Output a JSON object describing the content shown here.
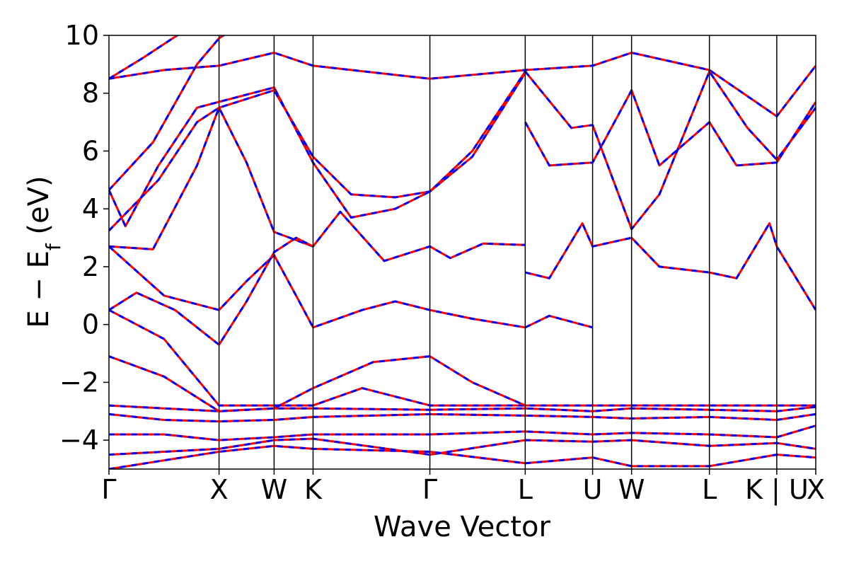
{
  "chart_data": {
    "type": "line",
    "xlabel": "Wave Vector",
    "ylabel": "E − E",
    "ylabel_sub": "f",
    "ylabel_units": " (eV)",
    "ylim": [
      -5,
      10
    ],
    "yticks": [
      "10",
      "8",
      "6",
      "4",
      "2",
      "0",
      "−2",
      "−4"
    ],
    "ytick_values": [
      10,
      8,
      6,
      4,
      2,
      0,
      -2,
      -4
    ],
    "high_symmetry_points": [
      {
        "label": "Γ",
        "x": 0.0
      },
      {
        "label": "X",
        "x": 1.0
      },
      {
        "label": "W",
        "x": 1.5
      },
      {
        "label": "K",
        "x": 1.854
      },
      {
        "label": "Γ",
        "x": 2.915
      },
      {
        "label": "L",
        "x": 3.781
      },
      {
        "label": "U",
        "x": 4.393
      },
      {
        "label": "W",
        "x": 4.747
      },
      {
        "label": "L",
        "x": 5.454
      },
      {
        "label": "K | U",
        "x": 6.066
      },
      {
        "label": "X",
        "x": 6.42
      }
    ],
    "grid": false,
    "legend": "none",
    "series_style": [
      {
        "color": "#ff0000",
        "dash": "solid",
        "width": 3
      },
      {
        "color": "#0000ff",
        "dash": "dashed",
        "width": 3
      }
    ],
    "bands": [
      [
        [
          0,
          8.5
        ],
        [
          0.5,
          8.8
        ],
        [
          1.0,
          8.95
        ],
        [
          1.5,
          9.4
        ],
        [
          1.854,
          8.95
        ],
        [
          2.915,
          8.5
        ],
        [
          3.781,
          8.8
        ],
        [
          4.393,
          8.95
        ],
        [
          4.747,
          9.4
        ],
        [
          5.454,
          8.8
        ],
        [
          6.066,
          7.2
        ],
        [
          6.42,
          8.95
        ]
      ],
      [
        [
          0,
          8.5
        ],
        [
          0.3,
          9.2
        ],
        [
          0.7,
          10.2
        ]
      ],
      [
        [
          0,
          4.65
        ],
        [
          0.4,
          6.3
        ],
        [
          0.8,
          9.0
        ],
        [
          1.0,
          9.9
        ],
        [
          1.2,
          10.4
        ]
      ],
      [
        [
          0,
          4.65
        ],
        [
          0.15,
          3.4
        ],
        [
          0.45,
          5.5
        ],
        [
          0.8,
          7.5
        ],
        [
          1.0,
          7.7
        ],
        [
          1.5,
          8.2
        ],
        [
          1.854,
          5.6
        ],
        [
          2.2,
          3.7
        ],
        [
          2.6,
          4.0
        ],
        [
          2.915,
          4.6
        ],
        [
          3.3,
          6.0
        ],
        [
          3.781,
          8.75
        ]
      ],
      [
        [
          0,
          3.25
        ],
        [
          0.45,
          5.0
        ],
        [
          0.8,
          7.0
        ],
        [
          1.0,
          7.5
        ],
        [
          1.5,
          8.1
        ],
        [
          1.854,
          5.8
        ],
        [
          2.2,
          4.5
        ],
        [
          2.6,
          4.4
        ],
        [
          2.915,
          4.6
        ],
        [
          3.3,
          5.8
        ],
        [
          3.781,
          8.7
        ]
      ],
      [
        [
          0,
          2.7
        ],
        [
          0.5,
          1.0
        ],
        [
          1.0,
          0.5
        ],
        [
          1.25,
          1.5
        ],
        [
          1.5,
          2.4
        ],
        [
          1.7,
          1.0
        ],
        [
          1.854,
          -0.1
        ],
        [
          2.3,
          0.5
        ],
        [
          2.6,
          0.8
        ],
        [
          2.915,
          0.5
        ],
        [
          3.3,
          0.2
        ],
        [
          3.781,
          -0.1
        ],
        [
          4.0,
          0.3
        ],
        [
          4.393,
          -0.1
        ]
      ],
      [
        [
          0,
          2.7
        ],
        [
          0.4,
          2.6
        ],
        [
          0.8,
          5.5
        ],
        [
          1.0,
          7.5
        ],
        [
          1.25,
          5.6
        ],
        [
          1.5,
          3.2
        ],
        [
          1.854,
          2.7
        ],
        [
          2.1,
          3.9
        ],
        [
          2.5,
          2.2
        ],
        [
          2.915,
          2.7
        ],
        [
          3.1,
          2.3
        ],
        [
          3.4,
          2.8
        ],
        [
          3.781,
          2.75
        ]
      ],
      [
        [
          0,
          0.5
        ],
        [
          0.25,
          1.1
        ],
        [
          0.6,
          0.5
        ],
        [
          1.0,
          -0.7
        ],
        [
          1.25,
          0.8
        ],
        [
          1.5,
          2.5
        ],
        [
          1.7,
          3.0
        ],
        [
          1.854,
          2.7
        ]
      ],
      [
        [
          0,
          0.5
        ],
        [
          0.5,
          -0.5
        ],
        [
          1.0,
          -2.8
        ],
        [
          1.5,
          -2.8
        ],
        [
          1.854,
          -2.8
        ],
        [
          2.3,
          -2.2
        ],
        [
          2.915,
          -2.8
        ],
        [
          3.781,
          -2.8
        ],
        [
          4.393,
          -2.8
        ],
        [
          4.747,
          -2.8
        ],
        [
          5.454,
          -2.8
        ],
        [
          6.066,
          -2.8
        ],
        [
          6.42,
          -2.8
        ]
      ],
      [
        [
          0,
          -1.1
        ],
        [
          0.5,
          -1.8
        ],
        [
          1.0,
          -3.0
        ],
        [
          1.5,
          -2.9
        ],
        [
          1.854,
          -2.2
        ],
        [
          2.4,
          -1.3
        ],
        [
          2.915,
          -1.1
        ],
        [
          3.3,
          -2.0
        ],
        [
          3.781,
          -2.8
        ]
      ],
      [
        [
          0,
          -2.8
        ],
        [
          0.5,
          -2.9
        ],
        [
          1.0,
          -3.0
        ],
        [
          1.5,
          -2.9
        ],
        [
          1.854,
          -2.9
        ],
        [
          2.915,
          -2.95
        ],
        [
          3.781,
          -2.9
        ],
        [
          4.393,
          -3.0
        ],
        [
          4.747,
          -2.9
        ],
        [
          5.454,
          -2.95
        ],
        [
          6.066,
          -3.0
        ],
        [
          6.42,
          -2.85
        ]
      ],
      [
        [
          0,
          -3.1
        ],
        [
          0.5,
          -3.3
        ],
        [
          1.0,
          -3.35
        ],
        [
          1.5,
          -3.3
        ],
        [
          1.854,
          -3.2
        ],
        [
          2.915,
          -3.1
        ],
        [
          3.781,
          -3.15
        ],
        [
          4.393,
          -3.2
        ],
        [
          4.747,
          -3.25
        ],
        [
          5.454,
          -3.2
        ],
        [
          6.066,
          -3.3
        ],
        [
          6.42,
          -3.1
        ]
      ],
      [
        [
          0,
          -3.8
        ],
        [
          0.5,
          -3.8
        ],
        [
          1.0,
          -4.0
        ],
        [
          1.5,
          -3.9
        ],
        [
          1.854,
          -3.8
        ],
        [
          2.915,
          -3.8
        ],
        [
          3.781,
          -3.7
        ],
        [
          4.393,
          -3.8
        ],
        [
          4.747,
          -3.75
        ],
        [
          5.454,
          -3.8
        ],
        [
          6.066,
          -3.9
        ],
        [
          6.42,
          -3.5
        ]
      ],
      [
        [
          0,
          -4.5
        ],
        [
          0.5,
          -4.4
        ],
        [
          1.0,
          -4.3
        ],
        [
          1.5,
          -4.0
        ],
        [
          1.854,
          -3.95
        ],
        [
          2.915,
          -4.5
        ],
        [
          3.781,
          -4.0
        ],
        [
          4.393,
          -4.05
        ],
        [
          4.747,
          -4.0
        ],
        [
          5.454,
          -4.2
        ],
        [
          6.066,
          -4.1
        ],
        [
          6.42,
          -4.3
        ]
      ],
      [
        [
          0,
          -5.0
        ],
        [
          0.5,
          -4.7
        ],
        [
          1.0,
          -4.4
        ],
        [
          1.5,
          -4.2
        ],
        [
          1.854,
          -4.3
        ],
        [
          2.915,
          -4.4
        ],
        [
          3.781,
          -4.8
        ],
        [
          4.393,
          -4.6
        ],
        [
          4.747,
          -4.9
        ],
        [
          5.454,
          -4.9
        ],
        [
          6.066,
          -4.5
        ],
        [
          6.42,
          -4.6
        ]
      ],
      [
        [
          3.781,
          1.8
        ],
        [
          4.0,
          1.6
        ],
        [
          4.3,
          3.5
        ],
        [
          4.393,
          2.7
        ],
        [
          4.747,
          3.0
        ],
        [
          5.0,
          2.0
        ],
        [
          5.454,
          1.8
        ],
        [
          5.7,
          1.6
        ],
        [
          6.0,
          3.5
        ],
        [
          6.066,
          2.7
        ],
        [
          6.42,
          0.5
        ]
      ],
      [
        [
          3.781,
          7.0
        ],
        [
          4.0,
          5.5
        ],
        [
          4.393,
          5.6
        ],
        [
          4.747,
          8.1
        ],
        [
          5.0,
          5.5
        ],
        [
          5.454,
          7.0
        ],
        [
          5.7,
          5.5
        ],
        [
          6.066,
          5.6
        ],
        [
          6.42,
          7.7
        ]
      ],
      [
        [
          3.781,
          8.75
        ],
        [
          4.2,
          6.8
        ],
        [
          4.393,
          6.9
        ],
        [
          4.747,
          3.3
        ],
        [
          5.0,
          4.5
        ],
        [
          5.454,
          8.75
        ],
        [
          5.8,
          6.8
        ],
        [
          6.066,
          5.7
        ],
        [
          6.42,
          7.5
        ]
      ]
    ]
  }
}
